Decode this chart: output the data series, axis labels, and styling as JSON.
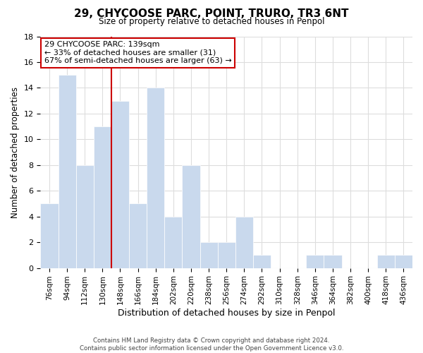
{
  "title": "29, CHYCOOSE PARC, POINT, TRURO, TR3 6NT",
  "subtitle": "Size of property relative to detached houses in Penpol",
  "xlabel": "Distribution of detached houses by size in Penpol",
  "ylabel": "Number of detached properties",
  "bar_color": "#c9d9ed",
  "bar_edge_color": "#ffffff",
  "categories": [
    "76sqm",
    "94sqm",
    "112sqm",
    "130sqm",
    "148sqm",
    "166sqm",
    "184sqm",
    "202sqm",
    "220sqm",
    "238sqm",
    "256sqm",
    "274sqm",
    "292sqm",
    "310sqm",
    "328sqm",
    "346sqm",
    "364sqm",
    "382sqm",
    "400sqm",
    "418sqm",
    "436sqm"
  ],
  "values": [
    5,
    15,
    8,
    11,
    13,
    5,
    14,
    4,
    8,
    2,
    2,
    4,
    1,
    0,
    0,
    1,
    1,
    0,
    0,
    1,
    1
  ],
  "ylim": [
    0,
    18
  ],
  "yticks": [
    0,
    2,
    4,
    6,
    8,
    10,
    12,
    14,
    16,
    18
  ],
  "property_label": "29 CHYCOOSE PARC: 139sqm",
  "pct_smaller": 33,
  "n_smaller": 31,
  "pct_larger_semi": 67,
  "n_larger_semi": 63,
  "vline_color": "#cc0000",
  "annotation_box_edge": "#cc0000",
  "footer_line1": "Contains HM Land Registry data © Crown copyright and database right 2024.",
  "footer_line2": "Contains public sector information licensed under the Open Government Licence v3.0.",
  "background_color": "#ffffff",
  "grid_color": "#dddddd"
}
